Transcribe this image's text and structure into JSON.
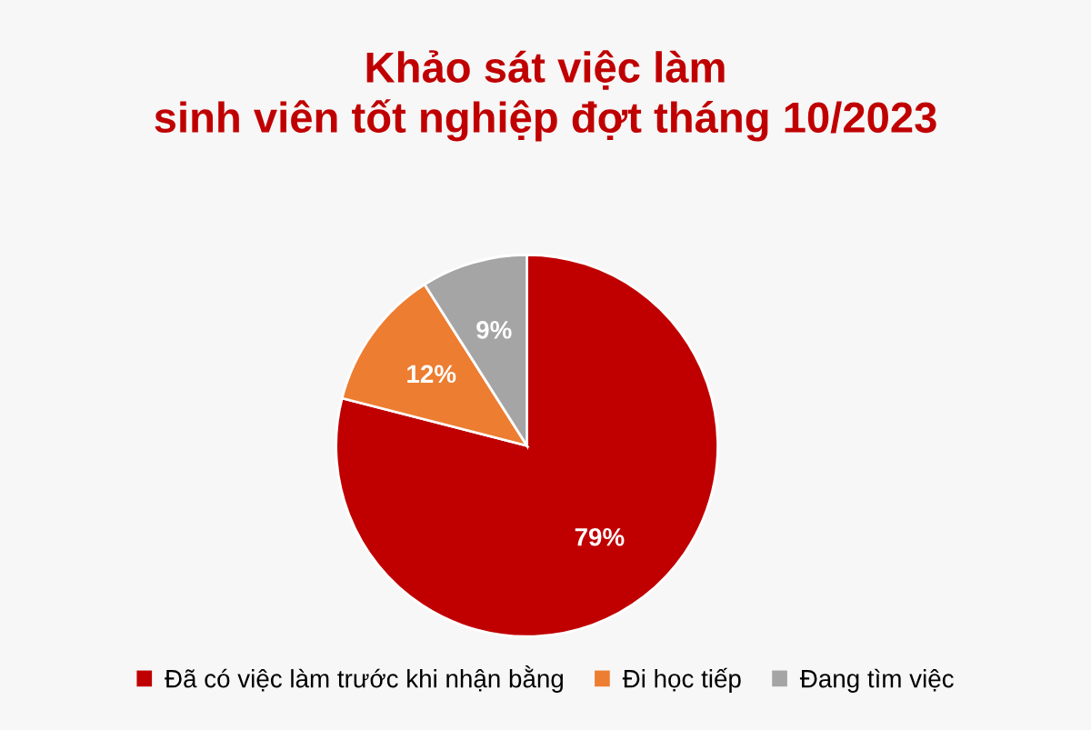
{
  "chart_data": {
    "type": "pie",
    "title": "Khảo sát việc làm\nsinh viên tốt nghiệp đợt tháng 10/2023",
    "categories": [
      "Đã có việc làm trước khi nhận bằng",
      "Đi học tiếp",
      "Đang tìm việc"
    ],
    "values": [
      79,
      12,
      9
    ],
    "colors": [
      "#c00000",
      "#ed7d31",
      "#a5a5a5"
    ],
    "value_labels": [
      "79%",
      "12%",
      "9%"
    ],
    "legend": "bottom"
  }
}
